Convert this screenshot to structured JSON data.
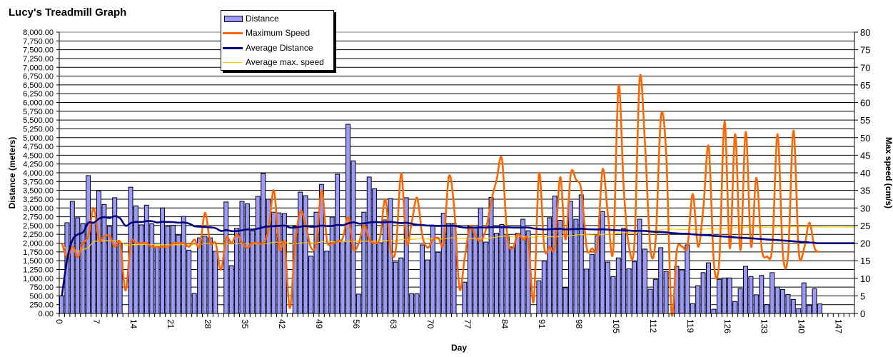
{
  "chart_data": {
    "type": "bar+line",
    "title": "Lucy's Treadmill Graph",
    "xlabel": "Day",
    "ylabel": "Distance (meters)",
    "y2label": "Max speed (cm/s)",
    "ylim": [
      0,
      8000
    ],
    "y2lim": [
      0,
      80
    ],
    "xlim": [
      0,
      150
    ],
    "grid": true,
    "legend_position": "top-center",
    "x_tick_labels": [
      "0",
      "7",
      "14",
      "21",
      "28",
      "35",
      "42",
      "49",
      "56",
      "63",
      "70",
      "77",
      "84",
      "91",
      "98",
      "105",
      "112",
      "119",
      "126",
      "133",
      "140",
      "147"
    ],
    "y_tick_labels": [
      "0.00",
      "250.00",
      "500.00",
      "750.00",
      "1,000.00",
      "1,250.00",
      "1,500.00",
      "1,750.00",
      "2,000.00",
      "2,250.00",
      "2,500.00",
      "2,750.00",
      "3,000.00",
      "3,250.00",
      "3,500.00",
      "3,750.00",
      "4,000.00",
      "4,250.00",
      "4,500.00",
      "4,750.00",
      "5,000.00",
      "5,250.00",
      "5,500.00",
      "5,750.00",
      "6,000.00",
      "6,250.00",
      "6,500.00",
      "6,750.00",
      "7,000.00",
      "7,250.00",
      "7,500.00",
      "7,750.00",
      "8,000.00"
    ],
    "y2_tick_labels": [
      "0",
      "5",
      "10",
      "15",
      "20",
      "25",
      "30",
      "35",
      "40",
      "45",
      "50",
      "55",
      "60",
      "65",
      "70",
      "75",
      "80"
    ],
    "legend": [
      "Distance",
      "Maximum Speed",
      "Average Distance",
      "Average max. speed"
    ],
    "colors": {
      "distance": "#9999FF",
      "max_speed": "#FF6600",
      "avg_distance": "#000080",
      "avg_max_speed": "#FFCC00"
    },
    "series": [
      {
        "name": "Distance",
        "axis": "left",
        "kind": "bar",
        "values": [
          500,
          2580,
          3190,
          2720,
          2560,
          3920,
          2600,
          3490,
          3100,
          2480,
          3290,
          2000,
          0,
          3590,
          3060,
          2520,
          3080,
          2550,
          1900,
          3000,
          2480,
          2510,
          2230,
          2760,
          1800,
          570,
          2150,
          2200,
          2150,
          1770,
          0,
          3170,
          1360,
          2420,
          3190,
          3120,
          2350,
          3330,
          3980,
          3250,
          2880,
          2860,
          2840,
          0,
          2480,
          3450,
          3350,
          1630,
          2880,
          3670,
          1770,
          2740,
          3960,
          2050,
          5380,
          4340,
          550,
          2880,
          3880,
          3550,
          2010,
          2660,
          3270,
          1460,
          1580,
          3290,
          560,
          560,
          1950,
          1520,
          2480,
          1740,
          2850,
          2560,
          2560,
          0,
          890,
          2480,
          2450,
          3000,
          2030,
          3300,
          2280,
          2530,
          2210,
          1890,
          2280,
          2680,
          2350,
          0,
          930,
          1490,
          2720,
          3340,
          2650,
          730,
          3190,
          2680,
          3370,
          1260,
          1680,
          2210,
          2900,
          1460,
          1050,
          1580,
          2420,
          1270,
          1470,
          2680,
          1830,
          690,
          970,
          1870,
          1200,
          0,
          1340,
          1240,
          1950,
          280,
          790,
          1160,
          1440,
          120,
          970,
          1010,
          1010,
          340,
          710,
          1340,
          1050,
          530,
          1080,
          250,
          1160,
          750,
          680,
          540,
          400,
          140,
          870,
          230,
          700,
          270
        ]
      },
      {
        "name": "Maximum Speed",
        "axis": "right",
        "kind": "line",
        "values": [
          20,
          16,
          19,
          16,
          20,
          22,
          30,
          21,
          22,
          22,
          19,
          20,
          6.5,
          20,
          20,
          20,
          20,
          19,
          19,
          19,
          19,
          20,
          20,
          20,
          19,
          21,
          19,
          28.6,
          20,
          20,
          12.4,
          21.5,
          20,
          22.5,
          20,
          18.7,
          20,
          20,
          20,
          24,
          35,
          18.5,
          20,
          1.5,
          20,
          29,
          25,
          18.7,
          20,
          35,
          20.7,
          20,
          20.5,
          21.5,
          27.4,
          18.3,
          20,
          25,
          21,
          20,
          21.5,
          32.5,
          18.3,
          18.3,
          39.8,
          20,
          26,
          32.9,
          22,
          18.7,
          21,
          21.5,
          20,
          39,
          30,
          7,
          16,
          24.8,
          22,
          20.7,
          24,
          32,
          38,
          44,
          22,
          18.5,
          22.5,
          21,
          20.5,
          3.5,
          39.8,
          18.5,
          19,
          19,
          38.8,
          21,
          39.8,
          38,
          35,
          18.5,
          18.5,
          19,
          41,
          28,
          18,
          64.8,
          35,
          18.7,
          20,
          67,
          48,
          18.5,
          21,
          56,
          45,
          0,
          18,
          19,
          19,
          34,
          19,
          30,
          47.5,
          14,
          15,
          54.6,
          18.5,
          51,
          18,
          51.6,
          19,
          38.6,
          18.5,
          16.2,
          19,
          51,
          17,
          17,
          52,
          17.5,
          18.5,
          25.8,
          18.5,
          17.5
        ]
      },
      {
        "name": "Average Distance",
        "axis": "left",
        "kind": "line",
        "derived_from": "Distance",
        "method": "running mean"
      },
      {
        "name": "Average max. speed",
        "axis": "right",
        "kind": "line",
        "derived_from": "Maximum Speed",
        "method": "running mean of non-zero values"
      }
    ]
  }
}
